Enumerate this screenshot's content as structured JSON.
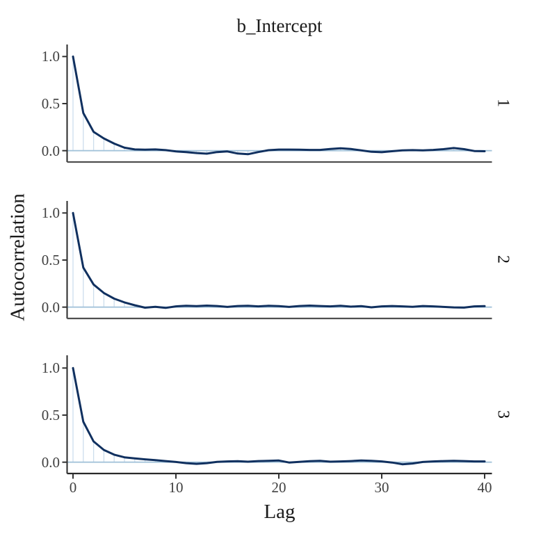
{
  "title": "b_Intercept",
  "ylabel": "Autocorrelation",
  "xlabel": "Lag",
  "colors": {
    "line": "#10305f",
    "segment": "#ccdded",
    "zero_line": "#a3c3da",
    "axis": "#2a2a2a",
    "axis_inner": "#4f4f4f",
    "tick": "#333333",
    "tick_label": "#404040",
    "text": "#1a1a1a"
  },
  "axes": {
    "x_ticks": [
      "0",
      "10",
      "20",
      "30",
      "40"
    ],
    "y_ticks": [
      "1.0",
      "0.5",
      "0.0"
    ],
    "x_tick_values": [
      0,
      10,
      20,
      30,
      40
    ],
    "y_tick_values": [
      1.0,
      0.5,
      0.0
    ]
  },
  "chart_data": {
    "type": "line",
    "title": "b_Intercept",
    "xlabel": "Lag",
    "ylabel": "Autocorrelation",
    "xlim": [
      -0.6,
      40.7
    ],
    "ylim": [
      -0.113,
      1.12
    ],
    "grid": false,
    "legend": false,
    "facet_labels_position": "right",
    "x": [
      0,
      1,
      2,
      3,
      4,
      5,
      6,
      7,
      8,
      9,
      10,
      11,
      12,
      13,
      14,
      15,
      16,
      17,
      18,
      19,
      20,
      21,
      22,
      23,
      24,
      25,
      26,
      27,
      28,
      29,
      30,
      31,
      32,
      33,
      34,
      35,
      36,
      37,
      38,
      39,
      40
    ],
    "panels": [
      {
        "label": "1",
        "values": [
          1.0,
          0.4,
          0.2,
          0.13,
          0.075,
          0.032,
          0.013,
          0.01,
          0.013,
          0.006,
          -0.008,
          -0.015,
          -0.025,
          -0.032,
          -0.015,
          -0.008,
          -0.03,
          -0.038,
          -0.015,
          0.005,
          0.012,
          0.012,
          0.01,
          0.008,
          0.008,
          0.018,
          0.026,
          0.018,
          0.004,
          -0.012,
          -0.016,
          -0.006,
          0.004,
          0.006,
          0.004,
          0.008,
          0.016,
          0.028,
          0.016,
          -0.004,
          -0.006
        ]
      },
      {
        "label": "2",
        "values": [
          1.0,
          0.42,
          0.24,
          0.15,
          0.09,
          0.05,
          0.02,
          -0.006,
          0.004,
          -0.008,
          0.008,
          0.014,
          0.01,
          0.016,
          0.012,
          0.002,
          0.012,
          0.015,
          0.008,
          0.014,
          0.01,
          0.002,
          0.012,
          0.016,
          0.012,
          0.008,
          0.014,
          0.005,
          0.01,
          -0.002,
          0.008,
          0.012,
          0.008,
          0.003,
          0.012,
          0.008,
          0.002,
          -0.003,
          -0.005,
          0.008,
          0.01
        ]
      },
      {
        "label": "3",
        "values": [
          1.0,
          0.43,
          0.22,
          0.13,
          0.08,
          0.052,
          0.04,
          0.03,
          0.022,
          0.012,
          0.002,
          -0.01,
          -0.018,
          -0.01,
          0.004,
          0.008,
          0.01,
          0.005,
          0.012,
          0.015,
          0.018,
          -0.004,
          0.003,
          0.01,
          0.015,
          0.005,
          0.008,
          0.012,
          0.018,
          0.015,
          0.008,
          -0.004,
          -0.022,
          -0.014,
          0.002,
          0.008,
          0.012,
          0.015,
          0.012,
          0.008,
          0.008
        ]
      }
    ]
  }
}
